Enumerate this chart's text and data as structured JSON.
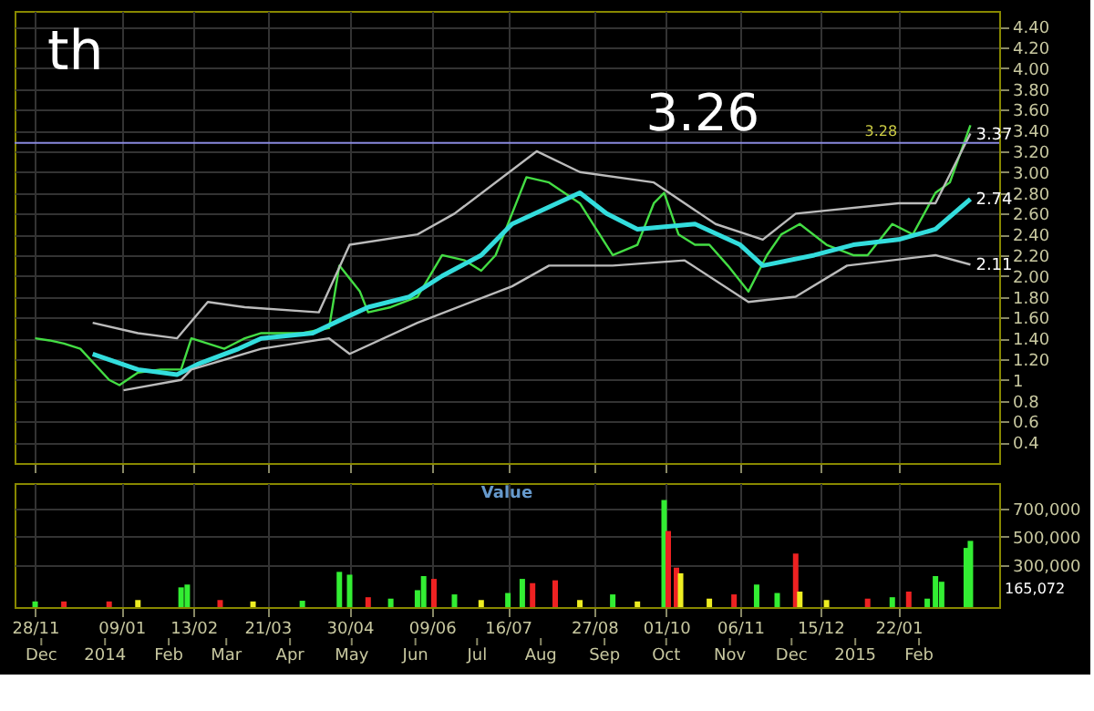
{
  "chart_data": [
    {
      "type": "line",
      "annotations": [
        "th",
        {
          "text": "3.26",
          "x": "2014-09-30",
          "y": 3.26
        },
        {
          "text": "3.37",
          "x": "2015-02-26",
          "y": 3.37
        },
        {
          "text": "2.74",
          "x": "2015-02-26",
          "y": 2.74
        },
        {
          "text": "2.11",
          "x": "2015-02-26",
          "y": 2.11
        }
      ],
      "series": [
        {
          "color": "#44dd44",
          "x": [
            "2013-11-28",
            "2013-12-05",
            "2013-12-12",
            "2013-12-20",
            "2014-01-03",
            "2014-01-08",
            "2014-01-17",
            "2014-01-28",
            "2014-02-07",
            "2014-02-12",
            "2014-02-20",
            "2014-02-28",
            "2014-03-10",
            "2014-03-18",
            "2014-04-07",
            "2014-04-20",
            "2014-04-25",
            "2014-05-05",
            "2014-05-09",
            "2014-05-20",
            "2014-06-02",
            "2014-06-14",
            "2014-06-25",
            "2014-07-03",
            "2014-07-10",
            "2014-07-18",
            "2014-07-25",
            "2014-08-05",
            "2014-08-20",
            "2014-09-05",
            "2014-09-17",
            "2014-09-25",
            "2014-09-30",
            "2014-10-07",
            "2014-10-15",
            "2014-10-22",
            "2014-10-31",
            "2014-11-10",
            "2014-11-19",
            "2014-11-26",
            "2014-12-05",
            "2014-12-18",
            "2014-12-31",
            "2015-01-07",
            "2015-01-19",
            "2015-01-29",
            "2015-02-09",
            "2015-02-16",
            "2015-02-26"
          ],
          "values": [
            1.4,
            1.38,
            1.35,
            1.3,
            1.0,
            0.95,
            1.07,
            1.1,
            1.1,
            1.4,
            1.35,
            1.3,
            1.4,
            1.45,
            1.45,
            1.5,
            2.1,
            1.85,
            1.65,
            1.7,
            1.8,
            2.2,
            2.15,
            2.05,
            2.2,
            2.6,
            2.95,
            2.9,
            2.7,
            2.2,
            2.3,
            2.7,
            2.8,
            2.4,
            2.3,
            2.3,
            2.1,
            1.85,
            2.2,
            2.4,
            2.5,
            2.3,
            2.2,
            2.2,
            2.5,
            2.4,
            2.8,
            2.9,
            3.45
          ]
        },
        {
          "color": "#33dddd",
          "x": [
            "2013-12-26",
            "2014-01-17",
            "2014-02-05",
            "2014-02-15",
            "2014-03-07",
            "2014-03-18",
            "2014-04-12",
            "2014-04-28",
            "2014-05-09",
            "2014-05-29",
            "2014-06-14",
            "2014-07-03",
            "2014-07-18",
            "2014-08-20",
            "2014-09-02",
            "2014-09-17",
            "2014-10-15",
            "2014-11-06",
            "2014-11-17",
            "2014-12-12",
            "2014-12-31",
            "2015-01-22",
            "2015-02-09",
            "2015-02-26"
          ],
          "values": [
            1.25,
            1.1,
            1.05,
            1.15,
            1.3,
            1.4,
            1.45,
            1.6,
            1.7,
            1.8,
            2.0,
            2.2,
            2.5,
            2.8,
            2.6,
            2.45,
            2.5,
            2.3,
            2.1,
            2.2,
            2.3,
            2.35,
            2.45,
            2.74
          ]
        },
        {
          "color": "#bbbbbb",
          "x": [
            "2013-12-26",
            "2014-01-17",
            "2014-02-05",
            "2014-02-20",
            "2014-03-10",
            "2014-04-15",
            "2014-04-30",
            "2014-06-02",
            "2014-06-20",
            "2014-07-30",
            "2014-08-20",
            "2014-09-25",
            "2014-10-25",
            "2014-11-17",
            "2014-12-03",
            "2015-01-22",
            "2015-02-09",
            "2015-02-26"
          ],
          "values": [
            1.55,
            1.45,
            1.4,
            1.75,
            1.7,
            1.65,
            2.3,
            2.4,
            2.6,
            3.2,
            3.0,
            2.9,
            2.5,
            2.35,
            2.6,
            2.7,
            2.7,
            3.37
          ]
        },
        {
          "color": "#bbbbbb",
          "x": [
            "2014-01-10",
            "2014-02-07",
            "2014-02-12",
            "2014-03-18",
            "2014-04-20",
            "2014-04-30",
            "2014-06-02",
            "2014-07-18",
            "2014-08-05",
            "2014-09-05",
            "2014-10-10",
            "2014-11-10",
            "2014-12-03",
            "2014-12-28",
            "2015-02-09",
            "2015-02-26"
          ],
          "values": [
            0.9,
            1.0,
            1.1,
            1.3,
            1.4,
            1.25,
            1.55,
            1.9,
            2.1,
            2.1,
            2.15,
            1.75,
            1.8,
            2.1,
            2.2,
            2.11
          ]
        }
      ],
      "ref_lines": [
        {
          "axis": "y",
          "value": 3.28,
          "label": "3.28",
          "color": "#8888dd"
        }
      ],
      "xlim": [
        "2013-11-18",
        "2015-03-12"
      ],
      "xticks": [
        {
          "value": "2013-11-28",
          "label": null
        },
        {
          "value": "2014-01-09",
          "label": null
        },
        {
          "value": "2014-02-13",
          "label": null
        },
        {
          "value": "2014-03-21",
          "label": null
        },
        {
          "value": "2014-04-30",
          "label": null
        },
        {
          "value": "2014-06-09",
          "label": null
        },
        {
          "value": "2014-07-16",
          "label": null
        },
        {
          "value": "2014-08-27",
          "label": null
        },
        {
          "value": "2014-10-01",
          "label": null
        },
        {
          "value": "2014-11-06",
          "label": null
        },
        {
          "value": "2014-12-15",
          "label": null
        },
        {
          "value": "2015-01-22",
          "label": null
        }
      ],
      "ylim": [
        0.2,
        4.55
      ],
      "yticks": [
        0.4,
        0.6,
        0.8,
        1,
        {
          "value": 1.2,
          "label": "1.20"
        },
        {
          "value": 1.4,
          "label": "1.40"
        },
        {
          "value": 1.6,
          "label": "1.60"
        },
        {
          "value": 1.8,
          "label": "1.80"
        },
        {
          "value": 2,
          "label": "2.00"
        },
        {
          "value": 2.2,
          "label": "2.20"
        },
        {
          "value": 2.4,
          "label": "2.40"
        },
        {
          "value": 2.6,
          "label": "2.60"
        },
        {
          "value": 2.8,
          "label": "2.80"
        },
        {
          "value": 3,
          "label": "3.00"
        },
        {
          "value": 3.2,
          "label": "3.20"
        },
        {
          "value": 3.4,
          "label": "3.40"
        },
        {
          "value": 3.6,
          "label": "3.60"
        },
        {
          "value": 3.8,
          "label": "3.80"
        },
        {
          "value": 4,
          "label": "4.00"
        },
        {
          "value": 4.2,
          "label": "4.20"
        },
        {
          "value": 4.4,
          "label": "4.40"
        }
      ],
      "tick_labels": "y",
      "grid": true
    },
    {
      "type": "bar",
      "title": "Value",
      "annotations": [
        "165,072"
      ],
      "x": [
        "2013-11-28",
        "2013-12-12",
        "2014-01-03",
        "2014-01-17",
        "2014-02-07",
        "2014-02-10",
        "2014-02-26",
        "2014-03-14",
        "2014-04-07",
        "2014-04-25",
        "2014-04-30",
        "2014-05-09",
        "2014-05-20",
        "2014-06-02",
        "2014-06-05",
        "2014-06-10",
        "2014-06-20",
        "2014-07-03",
        "2014-07-16",
        "2014-07-23",
        "2014-07-28",
        "2014-08-08",
        "2014-08-20",
        "2014-09-05",
        "2014-09-17",
        "2014-09-30",
        "2014-10-02",
        "2014-10-06",
        "2014-10-08",
        "2014-10-22",
        "2014-11-03",
        "2014-11-14",
        "2014-11-24",
        "2014-12-03",
        "2014-12-05",
        "2014-12-18",
        "2015-01-07",
        "2015-01-19",
        "2015-01-27",
        "2015-02-05",
        "2015-02-09",
        "2015-02-12",
        "2015-02-24",
        "2015-02-26"
      ],
      "values": [
        40000,
        40000,
        40000,
        50000,
        140000,
        160000,
        50000,
        40000,
        45000,
        250000,
        230000,
        70000,
        60000,
        120000,
        220000,
        200000,
        90000,
        50000,
        100000,
        200000,
        170000,
        190000,
        50000,
        90000,
        40000,
        760000,
        540000,
        280000,
        240000,
        60000,
        90000,
        160000,
        100000,
        380000,
        110000,
        50000,
        60000,
        70000,
        110000,
        60000,
        220000,
        180000,
        420000,
        470000
      ],
      "colors": [
        "#33ee33",
        "#ee2222",
        "#ee2222",
        "#eeee22",
        "#33ee33",
        "#33ee33",
        "#ee2222",
        "#eeee22",
        "#33ee33",
        "#33ee33",
        "#33ee33",
        "#ee2222",
        "#33ee33",
        "#33ee33",
        "#33ee33",
        "#ee2222",
        "#33ee33",
        "#eeee22",
        "#33ee33",
        "#33ee33",
        "#ee2222",
        "#ee2222",
        "#eeee22",
        "#33ee33",
        "#eeee22",
        "#33ee33",
        "#ee2222",
        "#ee2222",
        "#eeee22",
        "#eeee22",
        "#ee2222",
        "#33ee33",
        "#33ee33",
        "#ee2222",
        "#eeee22",
        "#eeee22",
        "#ee2222",
        "#33ee33",
        "#ee2222",
        "#33ee33",
        "#33ee33",
        "#33ee33",
        "#33ee33",
        "#33ee33"
      ],
      "xlim": [
        "2013-11-18",
        "2015-03-12"
      ],
      "xticks": [
        {
          "value": "2013-11-28",
          "label": "28/11"
        },
        {
          "value": "2014-01-09",
          "label": "09/01"
        },
        {
          "value": "2014-02-13",
          "label": "13/02"
        },
        {
          "value": "2014-03-21",
          "label": "21/03"
        },
        {
          "value": "2014-04-30",
          "label": "30/04"
        },
        {
          "value": "2014-06-09",
          "label": "09/06"
        },
        {
          "value": "2014-07-16",
          "label": "16/07"
        },
        {
          "value": "2014-08-27",
          "label": "27/08"
        },
        {
          "value": "2014-10-01",
          "label": "01/10"
        },
        {
          "value": "2014-11-06",
          "label": "06/11"
        },
        {
          "value": "2014-12-15",
          "label": "15/12"
        },
        {
          "value": "2015-01-22",
          "label": "22/01"
        }
      ],
      "x2lim": [
        "2013-11-18",
        "2015-03-12"
      ],
      "x2ticks": [
        {
          "value": "2013-12-01",
          "label": "Dec"
        },
        {
          "value": "2014-01-01",
          "label": "2014"
        },
        {
          "value": "2014-02-01",
          "label": "Feb"
        },
        {
          "value": "2014-03-01",
          "label": "Mar"
        },
        {
          "value": "2014-04-01",
          "label": "Apr"
        },
        {
          "value": "2014-05-01",
          "label": "May"
        },
        {
          "value": "2014-06-01",
          "label": "Jun"
        },
        {
          "value": "2014-07-01",
          "label": "Jul"
        },
        {
          "value": "2014-08-01",
          "label": "Aug"
        },
        {
          "value": "2014-09-01",
          "label": "Sep"
        },
        {
          "value": "2014-10-01",
          "label": "Oct"
        },
        {
          "value": "2014-11-01",
          "label": "Nov"
        },
        {
          "value": "2014-12-01",
          "label": "Dec"
        },
        {
          "value": "2015-01-01",
          "label": "2015"
        },
        {
          "value": "2015-02-01",
          "label": "Feb"
        }
      ],
      "ylim": [
        0,
        880000
      ],
      "yticks": [
        {
          "value": 300000,
          "label": "300,000"
        },
        {
          "value": 500000,
          "label": "500,000"
        },
        {
          "value": 700000,
          "label": "700,000"
        }
      ],
      "grid": true
    }
  ]
}
